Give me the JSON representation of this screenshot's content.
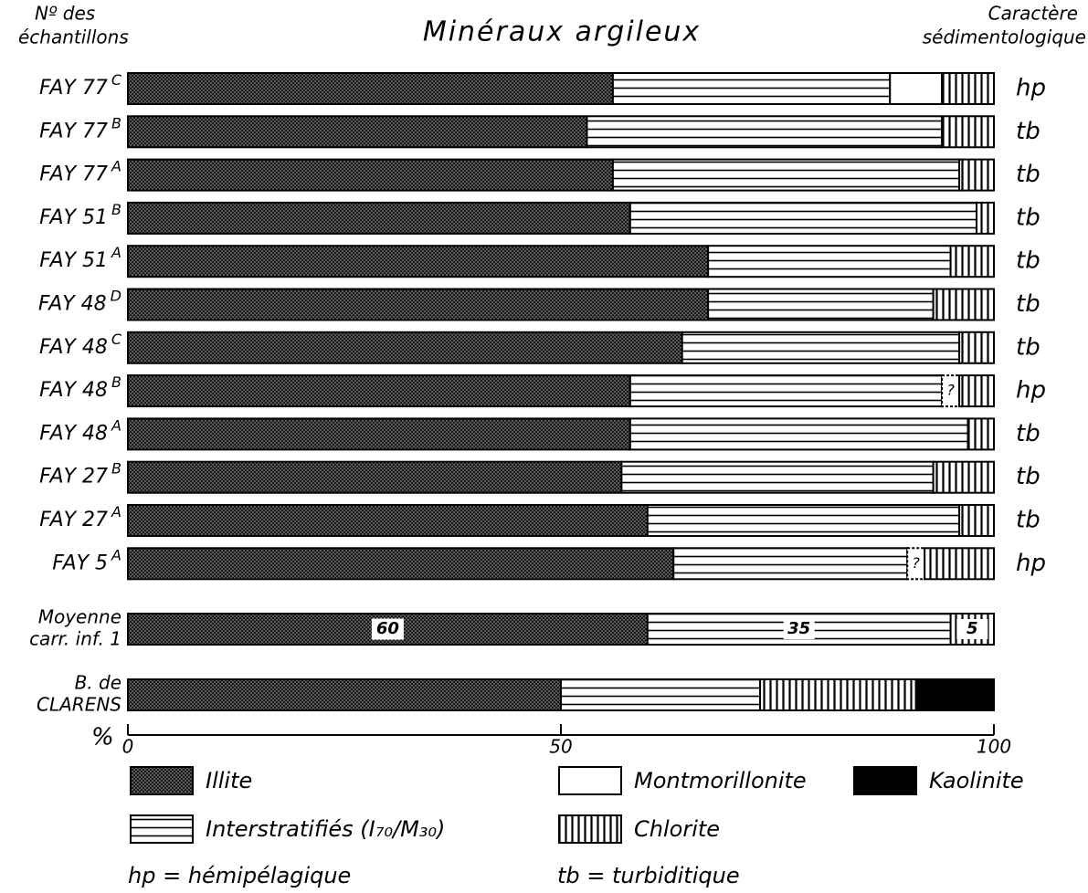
{
  "chart_data": {
    "type": "stacked-barh",
    "title": "Minéraux argileux",
    "left_header": [
      "Nº des",
      "échantillons"
    ],
    "right_header": [
      "Caractère",
      "sédimentologique"
    ],
    "categories": [
      [
        "FAY 77"
      ],
      [
        "FAY 77"
      ],
      [
        "FAY 77"
      ],
      [
        "FAY 51"
      ],
      [
        "FAY 51"
      ],
      [
        "FAY 48"
      ],
      [
        "FAY 48"
      ],
      [
        "FAY 48"
      ],
      [
        "FAY 48"
      ],
      [
        "FAY 27"
      ],
      [
        "FAY 27"
      ],
      [
        "FAY 5"
      ],
      [
        "Moyenne",
        "carr. inf. 1"
      ],
      [
        "B. de",
        "CLARENS"
      ]
    ],
    "category_superscripts": [
      "C",
      "B",
      "A",
      "B",
      "A",
      "D",
      "C",
      "B",
      "A",
      "B",
      "A",
      "A",
      null,
      null
    ],
    "sediment": [
      "hp",
      "tb",
      "tb",
      "tb",
      "tb",
      "tb",
      "tb",
      "hp",
      "tb",
      "tb",
      "tb",
      "hp",
      null,
      null
    ],
    "series": [
      {
        "name": "Illite",
        "pattern": "dots",
        "values": [
          56,
          53,
          56,
          58,
          67,
          67,
          64,
          58,
          58,
          57,
          60,
          63,
          60,
          50
        ],
        "value_labels": [
          null,
          null,
          null,
          null,
          null,
          null,
          null,
          null,
          null,
          null,
          null,
          null,
          "60",
          null
        ]
      },
      {
        "name": "Interstratifiés (I₇₀/M₃₀)",
        "pattern": "hlines",
        "values": [
          32,
          41,
          40,
          40,
          28,
          26,
          32,
          36,
          39,
          36,
          36,
          27,
          35,
          23
        ],
        "value_labels": [
          null,
          null,
          null,
          null,
          null,
          null,
          null,
          null,
          null,
          null,
          null,
          null,
          "35",
          null
        ]
      },
      {
        "name": "Montmorillonite",
        "pattern": "none",
        "values": [
          6,
          null,
          null,
          null,
          null,
          null,
          null,
          null,
          null,
          null,
          null,
          null,
          null,
          null
        ]
      },
      {
        "name": "Chlorite",
        "pattern": "vlines",
        "values": [
          6,
          6,
          4,
          2,
          5,
          7,
          4,
          4,
          3,
          7,
          4,
          8,
          5,
          18
        ],
        "value_labels": [
          null,
          null,
          null,
          null,
          null,
          null,
          null,
          null,
          null,
          null,
          null,
          null,
          "5",
          null
        ]
      },
      {
        "name": "Kaolinite",
        "pattern": "solid",
        "values": [
          null,
          null,
          null,
          null,
          null,
          null,
          null,
          null,
          null,
          null,
          null,
          null,
          null,
          9
        ]
      }
    ],
    "uncertain": {
      "label": "?",
      "values": [
        null,
        null,
        null,
        null,
        null,
        null,
        null,
        2,
        null,
        null,
        null,
        2,
        null,
        null
      ]
    },
    "xlabel": "%",
    "xlim": [
      0,
      100
    ],
    "xticks": [
      0,
      50,
      100
    ],
    "notes": [
      "hp = hémipélagique",
      "tb = turbiditique"
    ]
  }
}
